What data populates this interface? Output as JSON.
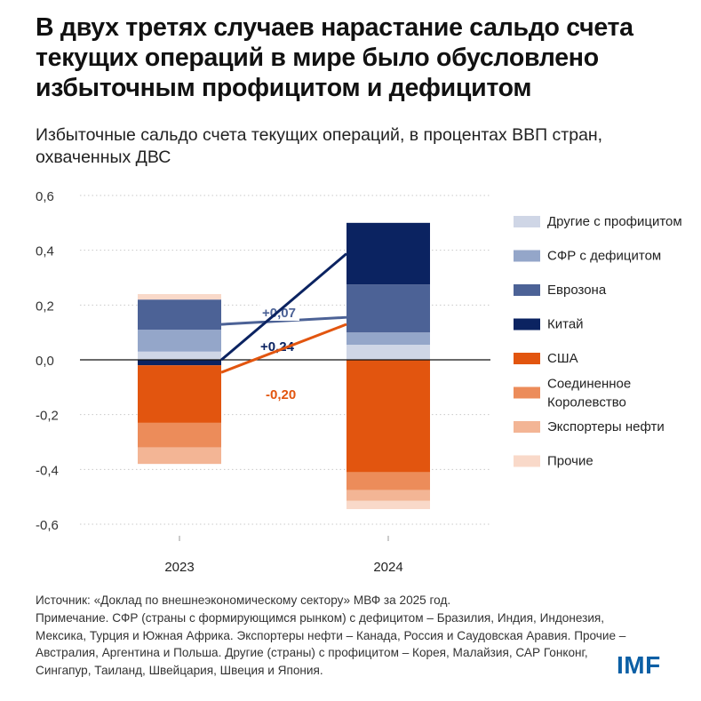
{
  "title": "В двух третях случаев нарастание сальдо счета текущих операций в мире было обусловлено избыточным профицитом и дефицитом",
  "subtitle": "Избыточные сальдо счета текущих операций, в процентах ВВП стран, охваченных ДВС",
  "source_lines": [
    "Источник: «Доклад по внешнеэкономическому сектору» МВФ за 2025 год.",
    "Примечание. СФР (страны с формирующимся рынком) с дефицитом – Бразилия, Индия, Индонезия, Мексика, Турция и Южная Африка. Экспортеры нефти – Канада, Россия и Саудовская Аравия. Прочие – Австралия, Аргентина и Польша. Другие (страны) с профицитом – Корея, Малайзия, САР Гонконг, Сингапур, Таиланд, Швейцария, Швеция и Япония."
  ],
  "logo": "IMF",
  "chart_data": {
    "type": "bar",
    "stacked": true,
    "categories": [
      "2023",
      "2024"
    ],
    "ylim": [
      -0.6,
      0.6
    ],
    "yticks": [
      "0,6",
      "0,4",
      "0,2",
      "0,0",
      "-0,2",
      "-0,4",
      "-0,6"
    ],
    "ytick_values": [
      0.6,
      0.4,
      0.2,
      0.0,
      -0.2,
      -0.4,
      -0.6
    ],
    "grid": "dotted",
    "legend_position": "right",
    "series": [
      {
        "name": "Другие с профицитом",
        "color": "#cfd6e6",
        "values": [
          0.03,
          0.055
        ]
      },
      {
        "name": "СФР с дефицитом",
        "color": "#94a6c9",
        "values": [
          0.08,
          0.045
        ]
      },
      {
        "name": "Еврозона",
        "color": "#4c6296",
        "values": [
          0.11,
          0.175
        ]
      },
      {
        "name": "Китай",
        "color": "#0b2361",
        "values": [
          -0.02,
          0.225
        ]
      },
      {
        "name": "США",
        "color": "#e2550f",
        "values": [
          -0.21,
          -0.41
        ]
      },
      {
        "name": "Соединенное Королевство",
        "color": "#ec8c5a",
        "values": [
          -0.09,
          -0.065
        ]
      },
      {
        "name": "Экспортеры нефти",
        "color": "#f3b595",
        "values": [
          -0.06,
          -0.04
        ]
      },
      {
        "name": "Прочие",
        "color": "#f9d9c9",
        "values": [
          0.02,
          -0.03
        ]
      }
    ],
    "annotations": [
      {
        "label": "+0,07",
        "color": "#4c6296"
      },
      {
        "label": "+0,24",
        "color": "#0b2361"
      },
      {
        "label": "-0,20",
        "color": "#e2550f"
      }
    ]
  }
}
